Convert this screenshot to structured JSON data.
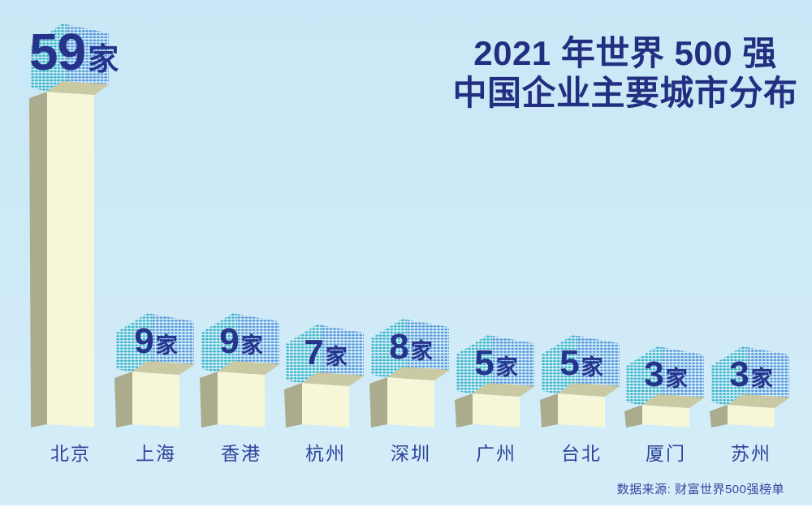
{
  "title": {
    "line1": "2021 年世界 500 强",
    "line2": "中国企业主要城市分布"
  },
  "source": "数据来源: 财富世界500强榜单",
  "colors": {
    "background": "#cdeaf7",
    "title_text": "#222f80",
    "number_text": "#26338b",
    "city_text": "#2d4499",
    "source_text": "#33479e",
    "bar_front": "#f6f6d8",
    "bar_top": "#c9c9a4",
    "bar_side": "#abab8d",
    "dots_teal": "#2ab0c5",
    "dots_blue": "#4a8fd8"
  },
  "chart_data": {
    "type": "bar",
    "title": "2021 年世界 500 强中国企业主要城市分布",
    "categories": [
      "北京",
      "上海",
      "香港",
      "杭州",
      "深圳",
      "广州",
      "台北",
      "厦门",
      "苏州"
    ],
    "values": [
      59,
      9,
      9,
      7,
      8,
      5,
      5,
      3,
      3
    ],
    "unit": "家",
    "xlabel": "",
    "ylabel": "",
    "legend": null,
    "grid": false,
    "style": "3d-isometric-boxes",
    "source_note": "数据来源: 财富世界500强榜单"
  }
}
